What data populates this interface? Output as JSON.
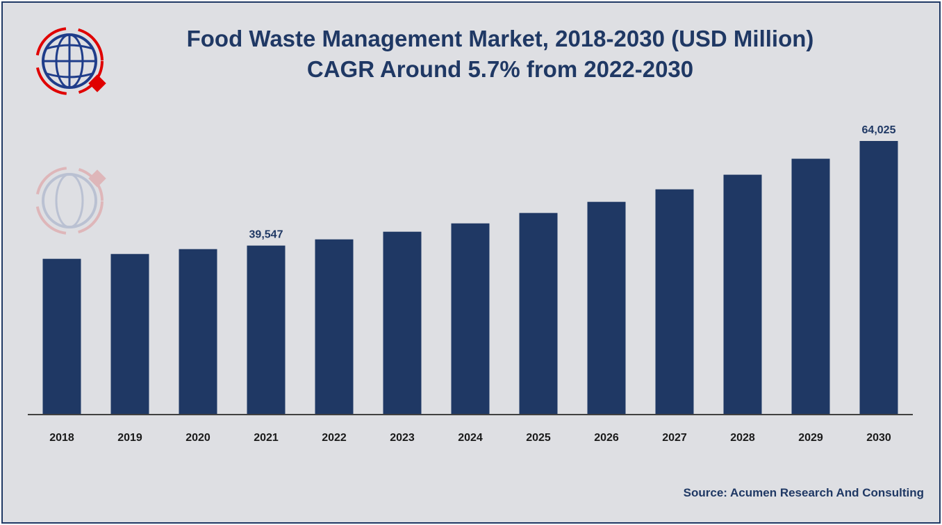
{
  "chart_data": {
    "type": "bar",
    "title": "Food Waste Management Market, 2018-2030 (USD Million)",
    "subtitle": "CAGR Around 5.7% from 2022-2030",
    "categories": [
      "2018",
      "2019",
      "2020",
      "2021",
      "2022",
      "2023",
      "2024",
      "2025",
      "2026",
      "2027",
      "2028",
      "2029",
      "2030"
    ],
    "values": [
      36450,
      37580,
      38720,
      39547,
      41000,
      42790,
      44740,
      47180,
      49780,
      52710,
      56130,
      59870,
      64025
    ],
    "data_labels": {
      "2021": "39,547",
      "2030": "64,025"
    },
    "xlabel": "",
    "ylabel": "",
    "ylim": [
      0,
      70000
    ],
    "grid": false,
    "bar_color": "#1f3864"
  },
  "source": "Source: Acumen Research And Consulting"
}
